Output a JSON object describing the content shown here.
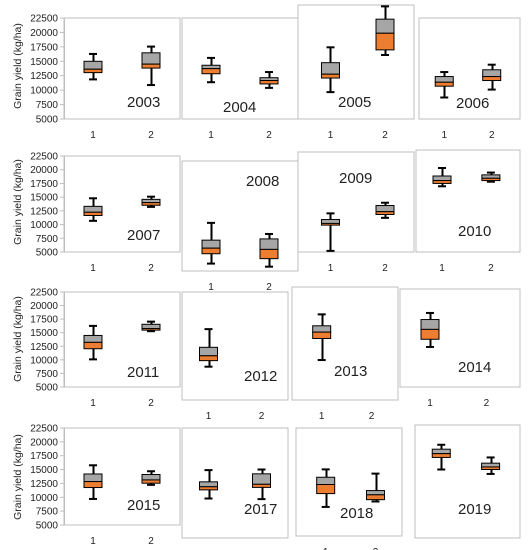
{
  "chart_data": {
    "type": "box",
    "ylabel": "Grain yield (kg/ha)",
    "ylim": [
      5000,
      22500
    ],
    "yticks": [
      "5000",
      "7500",
      "10000",
      "12500",
      "15000",
      "17500",
      "20000",
      "22500"
    ],
    "categories": [
      "1",
      "2"
    ],
    "colors": {
      "upper_box": "#a6a6a6",
      "lower_box": "#ed7d31",
      "whisker": "#000000"
    },
    "panels": [
      {
        "year": "2003",
        "boxes": [
          {
            "min": 12000,
            "q1": 13200,
            "median": 13800,
            "q3": 15200,
            "max": 16500
          },
          {
            "min": 11000,
            "q1": 14000,
            "median": 14700,
            "q3": 16700,
            "max": 17800
          }
        ]
      },
      {
        "year": "2004",
        "boxes": [
          {
            "min": 11500,
            "q1": 13000,
            "median": 13900,
            "q3": 14500,
            "max": 15800
          },
          {
            "min": 10500,
            "q1": 11200,
            "median": 11800,
            "q3": 12300,
            "max": 13300
          }
        ]
      },
      {
        "year": "2005",
        "boxes": [
          {
            "min": 9200,
            "q1": 11400,
            "median": 12000,
            "q3": 13800,
            "max": 16200
          },
          {
            "min": 15000,
            "q1": 15800,
            "median": 18400,
            "q3": 20600,
            "max": 22600
          }
        ]
      },
      {
        "year": "2006",
        "boxes": [
          {
            "min": 8800,
            "q1": 10800,
            "median": 11500,
            "q3": 12500,
            "max": 13300
          },
          {
            "min": 10200,
            "q1": 11800,
            "median": 12500,
            "q3": 13700,
            "max": 14600
          }
        ]
      },
      {
        "year": "2007",
        "boxes": [
          {
            "min": 10800,
            "q1": 11800,
            "median": 12400,
            "q3": 13500,
            "max": 15000
          },
          {
            "min": 13400,
            "q1": 13700,
            "median": 14200,
            "q3": 14800,
            "max": 15300
          }
        ]
      },
      {
        "year": "2008",
        "boxes": [
          {
            "min": 6200,
            "q1": 7800,
            "median": 8700,
            "q3": 10000,
            "max": 12800
          },
          {
            "min": 5700,
            "q1": 7000,
            "median": 8500,
            "q3": 10200,
            "max": 11000
          }
        ]
      },
      {
        "year": "2009",
        "boxes": [
          {
            "min": 5200,
            "q1": 9800,
            "median": 10100,
            "q3": 10800,
            "max": 11900
          },
          {
            "min": 11100,
            "q1": 11700,
            "median": 12200,
            "q3": 13300,
            "max": 13800
          }
        ]
      },
      {
        "year": "2010",
        "boxes": [
          {
            "min": 16500,
            "q1": 17000,
            "median": 17500,
            "q3": 18300,
            "max": 19700
          },
          {
            "min": 17300,
            "q1": 17500,
            "median": 17900,
            "q3": 18500,
            "max": 18900
          }
        ]
      },
      {
        "year": "2011",
        "boxes": [
          {
            "min": 10200,
            "q1": 12200,
            "median": 13400,
            "q3": 14700,
            "max": 16500
          },
          {
            "min": 15500,
            "q1": 15700,
            "median": 16000,
            "q3": 16800,
            "max": 17300
          }
        ]
      },
      {
        "year": "2012",
        "boxes": [
          {
            "min": 10500,
            "q1": 11500,
            "median": 12300,
            "q3": 13700,
            "max": 16700
          },
          null
        ]
      },
      {
        "year": "2013",
        "boxes": [
          {
            "min": 11300,
            "q1": 14700,
            "median": 15700,
            "q3": 16700,
            "max": 18500
          },
          null
        ]
      },
      {
        "year": "2014",
        "boxes": [
          {
            "min": 12300,
            "q1": 13700,
            "median": 15500,
            "q3": 17300,
            "max": 18500
          },
          null
        ]
      },
      {
        "year": "2015",
        "boxes": [
          {
            "min": 9800,
            "q1": 11900,
            "median": 13000,
            "q3": 14400,
            "max": 16000
          },
          {
            "min": 12400,
            "q1": 12700,
            "median": 13300,
            "q3": 14300,
            "max": 14900
          }
        ]
      },
      {
        "year": "2017",
        "boxes": [
          {
            "min": 11400,
            "q1": 12800,
            "median": 13300,
            "q3": 14100,
            "max": 16000
          },
          {
            "min": 11300,
            "q1": 13200,
            "median": 13700,
            "q3": 15400,
            "max": 16100
          }
        ]
      },
      {
        "year": "2018",
        "boxes": [
          {
            "min": 9800,
            "q1": 12000,
            "median": 13500,
            "q3": 14700,
            "max": 16000
          },
          {
            "min": 10700,
            "q1": 11000,
            "median": 11800,
            "q3": 12500,
            "max": 15300
          }
        ]
      },
      {
        "year": "2019",
        "boxes": [
          {
            "min": 15800,
            "q1": 17700,
            "median": 18300,
            "q3": 19000,
            "max": 19700
          },
          {
            "min": 15100,
            "q1": 15800,
            "median": 16200,
            "q3": 16800,
            "max": 17700
          }
        ]
      }
    ]
  }
}
